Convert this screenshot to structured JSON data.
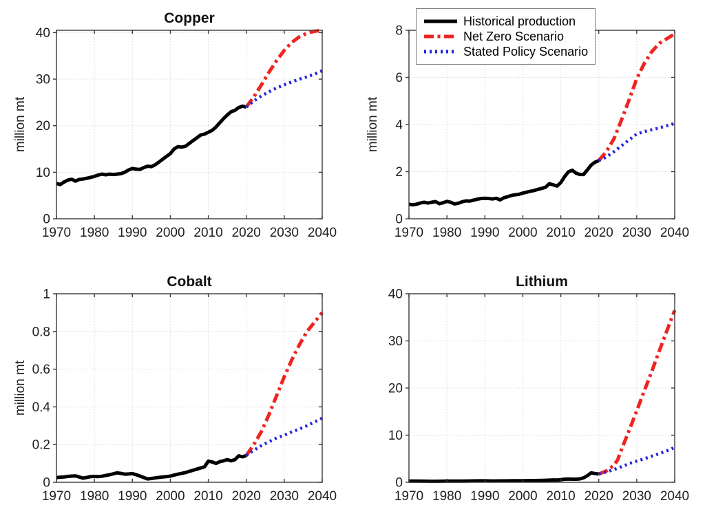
{
  "figure": {
    "background": "#ffffff",
    "layout": {
      "rows": 2,
      "cols": 2
    },
    "panel_order": [
      "Copper",
      "Nickel",
      "Cobalt",
      "Lithium"
    ]
  },
  "styles": {
    "grid_color": "#d9d9d9",
    "axis_color": "#3a3a3a",
    "text_color": "#1f1f1f",
    "historical_color": "#000000",
    "net_zero_color": "#ef2420",
    "stated_policy_color": "#2324dd",
    "dash_patterns": {
      "solid": "none",
      "dashdot": "14 5.5 4 5.5",
      "dotted": "3 5"
    }
  },
  "legend": {
    "attached_to_panel": "Nickel",
    "position": "top-left",
    "entries": [
      {
        "label": "Historical production",
        "style": "solid",
        "color": "#000000"
      },
      {
        "label": "Net Zero Scenario",
        "style": "dashdot",
        "color": "#ef2420"
      },
      {
        "label": "Stated Policy Scenario",
        "style": "dotted",
        "color": "#2324dd"
      }
    ]
  },
  "chart_data": [
    {
      "type": "line",
      "title": "Copper",
      "ylabel": "million mt",
      "xlim": [
        1970,
        2040
      ],
      "ylim": [
        0,
        40.5
      ],
      "xticks": [
        1970,
        1980,
        1990,
        2000,
        2010,
        2020,
        2030,
        2040
      ],
      "yticks": {
        "values": [
          0,
          10,
          20,
          30,
          40
        ],
        "labels": [
          "0",
          "10",
          "20",
          "30",
          "40"
        ]
      },
      "grid": true,
      "show_legend": false,
      "series": [
        {
          "name": "Historical production",
          "color": "#000000",
          "style": "solid",
          "width": 5,
          "x": [
            1970,
            1971,
            1972,
            1973,
            1974,
            1975,
            1976,
            1977,
            1978,
            1979,
            1980,
            1981,
            1982,
            1983,
            1984,
            1985,
            1986,
            1987,
            1988,
            1989,
            1990,
            1991,
            1992,
            1993,
            1994,
            1995,
            1996,
            1997,
            1998,
            1999,
            2000,
            2001,
            2002,
            2003,
            2004,
            2005,
            2006,
            2007,
            2008,
            2009,
            2010,
            2011,
            2012,
            2013,
            2014,
            2015,
            2016,
            2017,
            2018,
            2019,
            2020
          ],
          "y": [
            7.6,
            7.35,
            7.9,
            8.3,
            8.5,
            8.1,
            8.45,
            8.55,
            8.7,
            8.9,
            9.1,
            9.4,
            9.6,
            9.45,
            9.6,
            9.5,
            9.6,
            9.7,
            10.0,
            10.5,
            10.8,
            10.65,
            10.6,
            11.0,
            11.3,
            11.2,
            11.6,
            12.2,
            12.8,
            13.4,
            14.0,
            15.0,
            15.5,
            15.4,
            15.6,
            16.2,
            16.8,
            17.4,
            18.0,
            18.2,
            18.6,
            19.0,
            19.7,
            20.6,
            21.5,
            22.3,
            23.0,
            23.3,
            23.9,
            24.2,
            24.0
          ]
        },
        {
          "name": "Net Zero Scenario",
          "color": "#ef2420",
          "style": "dashdot",
          "width": 5,
          "x": [
            2020,
            2022,
            2024,
            2026,
            2028,
            2030,
            2032,
            2034,
            2036,
            2038,
            2040
          ],
          "y": [
            24.0,
            26.2,
            28.8,
            31.5,
            34.0,
            36.2,
            37.9,
            39.1,
            39.9,
            40.3,
            40.5
          ]
        },
        {
          "name": "Stated Policy Scenario",
          "color": "#2324dd",
          "style": "dotted",
          "width": 4.5,
          "x": [
            2020,
            2022,
            2024,
            2026,
            2028,
            2030,
            2032,
            2034,
            2036,
            2038,
            2040
          ],
          "y": [
            24.0,
            25.3,
            26.4,
            27.3,
            28.1,
            28.8,
            29.4,
            30.0,
            30.5,
            31.1,
            31.8
          ]
        }
      ]
    },
    {
      "type": "line",
      "title": "Nickel",
      "ylabel": "million mt",
      "xlim": [
        1970,
        2040
      ],
      "ylim": [
        0,
        8
      ],
      "xticks": [
        1970,
        1980,
        1990,
        2000,
        2010,
        2020,
        2030,
        2040
      ],
      "yticks": {
        "values": [
          0,
          2,
          4,
          6,
          8
        ],
        "labels": [
          "0",
          "2",
          "4",
          "6",
          "8"
        ]
      },
      "grid": true,
      "show_legend": true,
      "series": [
        {
          "name": "Historical production",
          "color": "#000000",
          "style": "solid",
          "width": 5,
          "x": [
            1970,
            1971,
            1972,
            1973,
            1974,
            1975,
            1976,
            1977,
            1978,
            1979,
            1980,
            1981,
            1982,
            1983,
            1984,
            1985,
            1986,
            1987,
            1988,
            1989,
            1990,
            1991,
            1992,
            1993,
            1994,
            1995,
            1996,
            1997,
            1998,
            1999,
            2000,
            2001,
            2002,
            2003,
            2004,
            2005,
            2006,
            2007,
            2008,
            2009,
            2010,
            2011,
            2012,
            2013,
            2014,
            2015,
            2016,
            2017,
            2018,
            2019,
            2020
          ],
          "y": [
            0.62,
            0.59,
            0.62,
            0.67,
            0.7,
            0.67,
            0.7,
            0.73,
            0.64,
            0.68,
            0.74,
            0.7,
            0.63,
            0.66,
            0.72,
            0.76,
            0.75,
            0.79,
            0.83,
            0.86,
            0.87,
            0.86,
            0.84,
            0.87,
            0.8,
            0.89,
            0.94,
            0.99,
            1.02,
            1.04,
            1.09,
            1.13,
            1.17,
            1.2,
            1.25,
            1.29,
            1.34,
            1.49,
            1.44,
            1.39,
            1.54,
            1.79,
            1.99,
            2.06,
            1.94,
            1.88,
            1.88,
            2.08,
            2.28,
            2.4,
            2.47
          ]
        },
        {
          "name": "Net Zero Scenario",
          "color": "#ef2420",
          "style": "dashdot",
          "width": 5,
          "x": [
            2020,
            2022,
            2024,
            2026,
            2028,
            2030,
            2032,
            2034,
            2036,
            2038,
            2040
          ],
          "y": [
            2.47,
            2.85,
            3.4,
            4.2,
            5.05,
            5.95,
            6.6,
            7.1,
            7.45,
            7.65,
            7.85
          ]
        },
        {
          "name": "Stated Policy Scenario",
          "color": "#2324dd",
          "style": "dotted",
          "width": 4.5,
          "x": [
            2020,
            2022,
            2024,
            2026,
            2028,
            2030,
            2032,
            2034,
            2036,
            2038,
            2040
          ],
          "y": [
            2.47,
            2.62,
            2.85,
            3.1,
            3.35,
            3.6,
            3.7,
            3.78,
            3.86,
            3.95,
            4.05
          ]
        }
      ]
    },
    {
      "type": "line",
      "title": "Cobalt",
      "ylabel": "million mt",
      "xlim": [
        1970,
        2040
      ],
      "ylim": [
        0,
        1
      ],
      "xticks": [
        1970,
        1980,
        1990,
        2000,
        2010,
        2020,
        2030,
        2040
      ],
      "yticks": {
        "values": [
          0,
          0.2,
          0.4,
          0.6,
          0.8,
          1
        ],
        "labels": [
          "0",
          "0.2",
          "0.4",
          "0.6",
          "0.8",
          "1"
        ]
      },
      "grid": true,
      "show_legend": false,
      "series": [
        {
          "name": "Historical production",
          "color": "#000000",
          "style": "solid",
          "width": 5,
          "x": [
            1970,
            1971,
            1972,
            1973,
            1974,
            1975,
            1976,
            1977,
            1978,
            1979,
            1980,
            1981,
            1982,
            1983,
            1984,
            1985,
            1986,
            1987,
            1988,
            1989,
            1990,
            1991,
            1992,
            1993,
            1994,
            1995,
            1996,
            1997,
            1998,
            1999,
            2000,
            2001,
            2002,
            2003,
            2004,
            2005,
            2006,
            2007,
            2008,
            2009,
            2010,
            2011,
            2012,
            2013,
            2014,
            2015,
            2016,
            2017,
            2018,
            2019,
            2020
          ],
          "y": [
            0.025,
            0.027,
            0.028,
            0.031,
            0.033,
            0.034,
            0.028,
            0.022,
            0.026,
            0.03,
            0.031,
            0.03,
            0.032,
            0.036,
            0.04,
            0.045,
            0.05,
            0.047,
            0.043,
            0.044,
            0.046,
            0.04,
            0.033,
            0.025,
            0.018,
            0.02,
            0.023,
            0.026,
            0.028,
            0.03,
            0.033,
            0.038,
            0.043,
            0.047,
            0.052,
            0.058,
            0.064,
            0.07,
            0.076,
            0.082,
            0.112,
            0.108,
            0.1,
            0.109,
            0.114,
            0.12,
            0.114,
            0.12,
            0.14,
            0.135,
            0.142
          ]
        },
        {
          "name": "Net Zero Scenario",
          "color": "#ef2420",
          "style": "dashdot",
          "width": 5,
          "x": [
            2020,
            2022,
            2024,
            2026,
            2028,
            2030,
            2032,
            2034,
            2036,
            2038,
            2040
          ],
          "y": [
            0.142,
            0.2,
            0.27,
            0.36,
            0.46,
            0.56,
            0.65,
            0.73,
            0.8,
            0.85,
            0.9
          ]
        },
        {
          "name": "Stated Policy Scenario",
          "color": "#2324dd",
          "style": "dotted",
          "width": 4.5,
          "x": [
            2020,
            2022,
            2024,
            2026,
            2028,
            2030,
            2032,
            2034,
            2036,
            2038,
            2040
          ],
          "y": [
            0.142,
            0.17,
            0.195,
            0.215,
            0.235,
            0.25,
            0.267,
            0.283,
            0.3,
            0.32,
            0.34
          ]
        }
      ]
    },
    {
      "type": "line",
      "title": "Lithium",
      "ylabel": "",
      "xlim": [
        1970,
        2040
      ],
      "ylim": [
        0,
        40
      ],
      "xticks": [
        1970,
        1980,
        1990,
        2000,
        2010,
        2020,
        2030,
        2040
      ],
      "yticks": {
        "values": [
          0,
          10,
          20,
          30,
          40
        ],
        "labels": [
          "0",
          "10",
          "20",
          "30",
          "40"
        ]
      },
      "grid": true,
      "show_legend": false,
      "series": [
        {
          "name": "Historical production",
          "color": "#000000",
          "style": "solid",
          "width": 5,
          "x": [
            1970,
            1972,
            1974,
            1976,
            1978,
            1980,
            1982,
            1984,
            1986,
            1988,
            1990,
            1992,
            1994,
            1996,
            1998,
            2000,
            2002,
            2004,
            2006,
            2008,
            2009,
            2010,
            2011,
            2012,
            2013,
            2014,
            2015,
            2016,
            2017,
            2018,
            2019,
            2020
          ],
          "y": [
            0.25,
            0.26,
            0.24,
            0.2,
            0.22,
            0.25,
            0.26,
            0.27,
            0.28,
            0.3,
            0.3,
            0.28,
            0.29,
            0.31,
            0.33,
            0.34,
            0.35,
            0.38,
            0.42,
            0.5,
            0.48,
            0.55,
            0.65,
            0.7,
            0.66,
            0.66,
            0.72,
            0.95,
            1.4,
            2.0,
            1.85,
            1.75
          ]
        },
        {
          "name": "Net Zero Scenario",
          "color": "#ef2420",
          "style": "dashdot",
          "width": 5,
          "x": [
            2020,
            2022,
            2024,
            2025,
            2026,
            2028,
            2030,
            2032,
            2034,
            2036,
            2038,
            2040
          ],
          "y": [
            1.75,
            2.4,
            3.6,
            4.8,
            7.0,
            11.0,
            15.2,
            19.4,
            23.6,
            28.0,
            32.3,
            36.5
          ]
        },
        {
          "name": "Stated Policy Scenario",
          "color": "#2324dd",
          "style": "dotted",
          "width": 4.5,
          "x": [
            2020,
            2022,
            2024,
            2026,
            2028,
            2030,
            2032,
            2034,
            2036,
            2038,
            2040
          ],
          "y": [
            1.75,
            2.2,
            2.7,
            3.3,
            3.95,
            4.5,
            5.0,
            5.55,
            6.1,
            6.7,
            7.4
          ]
        }
      ]
    }
  ]
}
